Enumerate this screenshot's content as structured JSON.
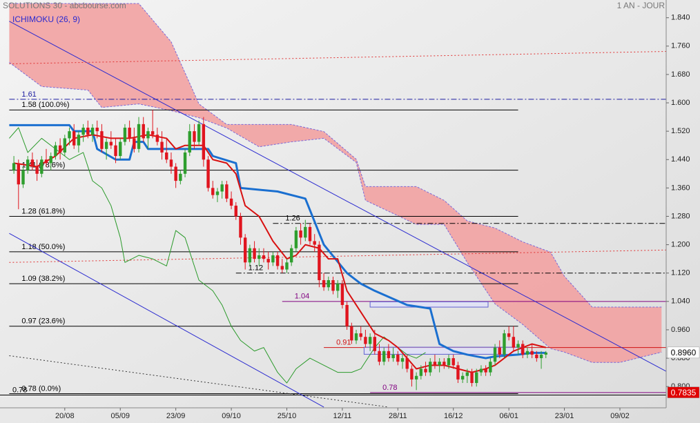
{
  "chart_data": {
    "type": "candlestick",
    "title": "SOLUTIONS 30 - abcbourse.com",
    "period": "1 AN - JOUR",
    "indicator": "ICHIMOKU (26, 9)",
    "xlim": [
      0,
      144
    ],
    "ylim": [
      0.74,
      1.89
    ],
    "grid": false,
    "xticks": [
      {
        "value": 14,
        "label": "20/08"
      },
      {
        "value": 26,
        "label": "05/09"
      },
      {
        "value": 38,
        "label": "23/09"
      },
      {
        "value": 50,
        "label": "09/10"
      },
      {
        "value": 62,
        "label": "25/10"
      },
      {
        "value": 74,
        "label": "12/11"
      },
      {
        "value": 86,
        "label": "28/11"
      },
      {
        "value": 98,
        "label": "16/12"
      },
      {
        "value": 110,
        "label": "06/01"
      },
      {
        "value": 122,
        "label": "23/01"
      },
      {
        "value": 134,
        "label": "09/02"
      }
    ],
    "yticks": [
      {
        "value": 1.84,
        "label": "1.840"
      },
      {
        "value": 1.76,
        "label": "1.760"
      },
      {
        "value": 1.68,
        "label": "1.680"
      },
      {
        "value": 1.6,
        "label": "1.600"
      },
      {
        "value": 1.52,
        "label": "1.520"
      },
      {
        "value": 1.44,
        "label": "1.440"
      },
      {
        "value": 1.36,
        "label": "1.360"
      },
      {
        "value": 1.28,
        "label": "1.280"
      },
      {
        "value": 1.2,
        "label": "1.200"
      },
      {
        "value": 1.12,
        "label": "1.120"
      },
      {
        "value": 1.04,
        "label": "1.040"
      },
      {
        "value": 0.96,
        "label": "0.960"
      },
      {
        "value": 0.88,
        "label": "0.880"
      },
      {
        "value": 0.8,
        "label": "0.800"
      }
    ],
    "up_color": "#2e9e2e",
    "down_color": "#e0141e",
    "x": [
      3,
      4,
      5,
      6,
      7,
      8,
      9,
      10,
      11,
      12,
      13,
      14,
      15,
      16,
      17,
      18,
      19,
      20,
      21,
      22,
      23,
      24,
      25,
      26,
      27,
      28,
      29,
      30,
      31,
      32,
      33,
      34,
      35,
      36,
      37,
      38,
      39,
      40,
      41,
      42,
      43,
      44,
      45,
      46,
      47,
      48,
      49,
      50,
      51,
      52,
      53,
      54,
      55,
      56,
      57,
      58,
      59,
      60,
      61,
      62,
      63,
      64,
      65,
      66,
      67,
      68,
      69,
      70,
      71,
      72,
      73,
      74,
      75,
      76,
      77,
      78,
      79,
      80,
      81,
      82,
      83,
      84,
      85,
      86,
      87,
      88,
      89,
      90,
      91,
      92,
      93,
      94,
      95,
      96,
      97,
      98,
      99,
      100,
      101,
      102,
      103,
      104,
      105,
      106,
      107,
      108,
      109,
      110,
      111,
      112,
      113,
      114,
      115,
      116,
      117,
      118
    ],
    "open": [
      1.41,
      1.43,
      1.37,
      1.41,
      1.44,
      1.42,
      1.4,
      1.44,
      1.43,
      1.45,
      1.48,
      1.46,
      1.5,
      1.52,
      1.48,
      1.51,
      1.53,
      1.51,
      1.53,
      1.52,
      1.47,
      1.49,
      1.48,
      1.45,
      1.49,
      1.53,
      1.5,
      1.47,
      1.54,
      1.5,
      1.52,
      1.51,
      1.49,
      1.46,
      1.44,
      1.42,
      1.38,
      1.4,
      1.46,
      1.52,
      1.49,
      1.54,
      1.44,
      1.36,
      1.34,
      1.35,
      1.37,
      1.33,
      1.31,
      1.28,
      1.22,
      1.15,
      1.19,
      1.16,
      1.17,
      1.16,
      1.15,
      1.17,
      1.14,
      1.13,
      1.15,
      1.19,
      1.24,
      1.22,
      1.25,
      1.21,
      1.2,
      1.1,
      1.08,
      1.1,
      1.07,
      1.09,
      1.03,
      0.97,
      0.93,
      0.95,
      0.94,
      0.92,
      0.94,
      0.9,
      0.87,
      0.9,
      0.88,
      0.89,
      0.87,
      0.88,
      0.85,
      0.82,
      0.83,
      0.85,
      0.84,
      0.87,
      0.86,
      0.87,
      0.86,
      0.88,
      0.86,
      0.82,
      0.83,
      0.84,
      0.81,
      0.84,
      0.85,
      0.84,
      0.87,
      0.91,
      0.89,
      0.95,
      0.94,
      0.91,
      0.92,
      0.89,
      0.9,
      0.89,
      0.88,
      0.89
    ],
    "high": [
      1.45,
      1.44,
      1.42,
      1.45,
      1.46,
      1.44,
      1.45,
      1.47,
      1.46,
      1.49,
      1.5,
      1.51,
      1.53,
      1.54,
      1.52,
      1.54,
      1.55,
      1.54,
      1.55,
      1.54,
      1.5,
      1.52,
      1.5,
      1.5,
      1.54,
      1.55,
      1.53,
      1.56,
      1.56,
      1.53,
      1.58,
      1.53,
      1.52,
      1.5,
      1.46,
      1.43,
      1.41,
      1.47,
      1.54,
      1.54,
      1.55,
      1.56,
      1.45,
      1.38,
      1.36,
      1.38,
      1.38,
      1.35,
      1.32,
      1.29,
      1.23,
      1.2,
      1.21,
      1.19,
      1.19,
      1.18,
      1.18,
      1.18,
      1.16,
      1.16,
      1.2,
      1.25,
      1.26,
      1.27,
      1.26,
      1.23,
      1.21,
      1.12,
      1.11,
      1.11,
      1.1,
      1.1,
      1.04,
      0.98,
      0.96,
      0.97,
      0.96,
      0.95,
      0.96,
      0.92,
      0.91,
      0.92,
      0.91,
      0.9,
      0.89,
      0.89,
      0.86,
      0.84,
      0.86,
      0.87,
      0.88,
      0.89,
      0.88,
      0.88,
      0.89,
      0.89,
      0.87,
      0.84,
      0.85,
      0.85,
      0.85,
      0.86,
      0.86,
      0.88,
      0.92,
      0.93,
      0.96,
      0.97,
      0.97,
      0.93,
      0.93,
      0.91,
      0.92,
      0.9,
      0.9,
      0.9
    ],
    "low": [
      1.4,
      1.3,
      1.36,
      1.4,
      1.41,
      1.38,
      1.39,
      1.42,
      1.41,
      1.44,
      1.44,
      1.45,
      1.48,
      1.47,
      1.46,
      1.49,
      1.5,
      1.49,
      1.5,
      1.46,
      1.44,
      1.47,
      1.43,
      1.44,
      1.48,
      1.49,
      1.46,
      1.46,
      1.49,
      1.47,
      1.5,
      1.48,
      1.44,
      1.43,
      1.4,
      1.36,
      1.37,
      1.39,
      1.45,
      1.47,
      1.48,
      1.42,
      1.35,
      1.33,
      1.32,
      1.33,
      1.32,
      1.3,
      1.27,
      1.2,
      1.13,
      1.14,
      1.15,
      1.14,
      1.15,
      1.13,
      1.14,
      1.13,
      1.12,
      1.12,
      1.14,
      1.18,
      1.2,
      1.21,
      1.2,
      1.18,
      1.08,
      1.07,
      1.07,
      1.06,
      1.05,
      1.02,
      0.96,
      0.92,
      0.92,
      0.93,
      0.91,
      0.9,
      0.89,
      0.86,
      0.86,
      0.87,
      0.87,
      0.86,
      0.85,
      0.84,
      0.8,
      0.79,
      0.82,
      0.83,
      0.83,
      0.85,
      0.84,
      0.85,
      0.85,
      0.85,
      0.81,
      0.81,
      0.81,
      0.8,
      0.8,
      0.83,
      0.83,
      0.83,
      0.86,
      0.88,
      0.88,
      0.93,
      0.9,
      0.89,
      0.88,
      0.88,
      0.88,
      0.87,
      0.85,
      0.88
    ],
    "close": [
      1.43,
      1.37,
      1.41,
      1.44,
      1.42,
      1.4,
      1.44,
      1.43,
      1.45,
      1.48,
      1.46,
      1.5,
      1.52,
      1.48,
      1.51,
      1.53,
      1.51,
      1.53,
      1.52,
      1.47,
      1.49,
      1.48,
      1.45,
      1.49,
      1.53,
      1.5,
      1.47,
      1.54,
      1.5,
      1.52,
      1.51,
      1.49,
      1.46,
      1.44,
      1.42,
      1.38,
      1.4,
      1.46,
      1.52,
      1.49,
      1.54,
      1.44,
      1.36,
      1.34,
      1.35,
      1.37,
      1.33,
      1.31,
      1.28,
      1.22,
      1.15,
      1.19,
      1.16,
      1.17,
      1.16,
      1.15,
      1.17,
      1.14,
      1.13,
      1.15,
      1.19,
      1.24,
      1.22,
      1.25,
      1.21,
      1.2,
      1.1,
      1.08,
      1.1,
      1.07,
      1.09,
      1.03,
      0.97,
      0.93,
      0.95,
      0.94,
      0.92,
      0.94,
      0.9,
      0.87,
      0.9,
      0.88,
      0.89,
      0.87,
      0.88,
      0.85,
      0.82,
      0.83,
      0.85,
      0.84,
      0.87,
      0.86,
      0.87,
      0.86,
      0.88,
      0.86,
      0.82,
      0.83,
      0.84,
      0.81,
      0.84,
      0.85,
      0.84,
      0.87,
      0.91,
      0.89,
      0.95,
      0.94,
      0.91,
      0.92,
      0.89,
      0.9,
      0.89,
      0.88,
      0.89,
      0.896
    ],
    "cloud": {
      "color": "#f2a2a2",
      "edge_color": "#7b68d8",
      "x": [
        2,
        9,
        19,
        22,
        30,
        37,
        43,
        49,
        56,
        63,
        70,
        77,
        79,
        90,
        96,
        101,
        107,
        113,
        119,
        122,
        128,
        134,
        143
      ],
      "span_a": [
        1.88,
        1.88,
        1.88,
        1.88,
        1.88,
        1.772,
        1.597,
        1.539,
        1.539,
        1.539,
        1.519,
        1.441,
        1.364,
        1.364,
        1.325,
        1.267,
        1.247,
        1.208,
        1.179,
        1.111,
        1.024,
        1.024,
        1.024
      ],
      "span_b": [
        1.714,
        1.646,
        1.636,
        1.587,
        1.597,
        1.578,
        1.558,
        1.529,
        1.476,
        1.49,
        1.5,
        1.432,
        1.325,
        1.257,
        1.257,
        1.15,
        1.033,
        0.975,
        0.907,
        0.897,
        0.868,
        0.868,
        0.897
      ]
    },
    "lines": [
      {
        "color": "#2a9a2a",
        "width": 1,
        "x": [
          2,
          4,
          6,
          9,
          12,
          15,
          18,
          20,
          22,
          24,
          26,
          27,
          30,
          33,
          36,
          38,
          40,
          43,
          46,
          48,
          50,
          52,
          55,
          57,
          60,
          62,
          64,
          67,
          70,
          73,
          76,
          78,
          81,
          83,
          86,
          88,
          90,
          92
        ],
        "values": [
          1.5,
          1.53,
          1.46,
          1.5,
          1.47,
          1.44,
          1.46,
          1.38,
          1.36,
          1.31,
          1.22,
          1.15,
          1.17,
          1.16,
          1.14,
          1.24,
          1.22,
          1.1,
          1.07,
          1.03,
          0.97,
          0.93,
          0.9,
          0.91,
          0.84,
          0.81,
          0.85,
          0.88,
          0.86,
          0.84,
          0.84,
          0.85,
          0.91,
          0.94,
          0.91,
          0.89,
          0.88,
          0.896
        ]
      },
      {
        "color": "#1a6fd0",
        "width": 3,
        "x": [
          2,
          15,
          16,
          20,
          21,
          25,
          28,
          29,
          31,
          32,
          45,
          46,
          51,
          52,
          60,
          66,
          70,
          75,
          78,
          81,
          88,
          93,
          95,
          98,
          101,
          105,
          107,
          112,
          115,
          118
        ],
        "values": [
          1.537,
          1.537,
          1.52,
          1.52,
          1.47,
          1.44,
          1.44,
          1.49,
          1.49,
          1.47,
          1.47,
          1.45,
          1.43,
          1.36,
          1.35,
          1.33,
          1.2,
          1.12,
          1.09,
          1.07,
          1.03,
          1.02,
          0.92,
          0.9,
          0.89,
          0.88,
          0.885,
          0.89,
          0.895,
          0.895
        ]
      },
      {
        "color": "#d81010",
        "width": 2,
        "x": [
          3,
          8,
          12,
          16,
          20,
          24,
          28,
          32,
          36,
          38,
          40,
          44,
          46,
          49,
          51,
          53,
          56,
          59,
          62,
          64,
          66,
          69,
          71,
          73,
          75,
          77,
          79,
          81,
          84,
          86,
          88,
          90,
          93,
          96,
          99,
          102,
          105,
          107,
          109,
          111,
          113,
          115,
          118
        ],
        "values": [
          1.43,
          1.42,
          1.45,
          1.5,
          1.51,
          1.5,
          1.5,
          1.51,
          1.5,
          1.47,
          1.48,
          1.48,
          1.44,
          1.43,
          1.4,
          1.31,
          1.28,
          1.21,
          1.16,
          1.17,
          1.2,
          1.19,
          1.16,
          1.16,
          1.07,
          1.03,
          0.99,
          0.95,
          0.93,
          0.91,
          0.88,
          0.85,
          0.86,
          0.86,
          0.85,
          0.84,
          0.85,
          0.86,
          0.88,
          0.9,
          0.91,
          0.92,
          0.91
        ]
      }
    ],
    "trendlines": [
      {
        "x": [
          2,
          144
        ],
        "values": [
          1.83,
          0.843
        ],
        "color": "#2a2ad0",
        "dash": "none"
      },
      {
        "x": [
          2,
          70
        ],
        "values": [
          1.232,
          0.742
        ],
        "color": "#2a2ad0",
        "dash": "none"
      },
      {
        "x": [
          2,
          84
        ],
        "values": [
          0.887,
          0.742
        ],
        "color": "#333333",
        "dash": "2,3"
      },
      {
        "x": [
          2,
          144
        ],
        "values": [
          1.71,
          1.745
        ],
        "color": "#e03030",
        "dash": "2,3"
      },
      {
        "x": [
          2,
          144
        ],
        "values": [
          1.15,
          1.185
        ],
        "color": "#e03030",
        "dash": "2,3"
      }
    ],
    "levels": [
      {
        "label": "1.61",
        "value": 1.61,
        "x": [
          2,
          144
        ],
        "color": "#1a1aa0",
        "dash": "8,3,2,3"
      },
      {
        "label": "1.58 (100.0%)",
        "value": 1.58,
        "x": [
          2,
          112
        ],
        "color": "#000000",
        "dash": "none"
      },
      {
        "label": "1.41 (78.6%)",
        "value": 1.41,
        "x": [
          2,
          112
        ],
        "color": "#000000",
        "dash": "none"
      },
      {
        "label": "1.28 (61.8%)",
        "value": 1.28,
        "x": [
          2,
          112
        ],
        "color": "#000000",
        "dash": "none"
      },
      {
        "label": "1.26",
        "value": 1.26,
        "x": [
          59,
          144
        ],
        "color": "#000000",
        "dash": "8,3,2,3"
      },
      {
        "label": "1.18 (50.0%)",
        "value": 1.18,
        "x": [
          2,
          112
        ],
        "color": "#000000",
        "dash": "none"
      },
      {
        "label": "1.12",
        "value": 1.12,
        "x": [
          51,
          144
        ],
        "color": "#000000",
        "dash": "8,3,2,3"
      },
      {
        "label": "1.09 (38.2%)",
        "value": 1.09,
        "x": [
          2,
          112
        ],
        "color": "#000000",
        "dash": "none"
      },
      {
        "label": "1.04",
        "value": 1.04,
        "x": [
          61,
          144
        ],
        "color": "#800080",
        "dash": "none"
      },
      {
        "label": "0.97 (23.6%)",
        "value": 0.97,
        "x": [
          2,
          112
        ],
        "color": "#000000",
        "dash": "none"
      },
      {
        "label": "0.91",
        "value": 0.91,
        "x": [
          70,
          144
        ],
        "color": "#d01010",
        "dash": "none"
      },
      {
        "label": "0.78",
        "value": 0.783,
        "x": [
          80,
          144
        ],
        "color": "#800080",
        "dash": "none"
      },
      {
        "label": "0.78 (0.0%)",
        "value": 0.78,
        "x": [
          2,
          112
        ],
        "color": "#000000",
        "dash": "none"
      },
      {
        "label": "0.78",
        "value": 0.776,
        "x": [
          0,
          144
        ],
        "color": "#000000",
        "dash": "none"
      }
    ],
    "rects": [
      {
        "x": [
          80,
          105.5
        ],
        "y": [
          1.024,
          1.039
        ],
        "color": "#6060d0"
      },
      {
        "x": [
          78.7,
          112.7
        ],
        "y": [
          0.891,
          0.911
        ],
        "color": "#6060d0"
      }
    ],
    "price_tags": [
      {
        "value": 0.896,
        "label": "0.8960",
        "color": "#ffffff",
        "text_color": "#000000"
      },
      {
        "value": 0.7835,
        "label": "0.7835",
        "color": "#e00000",
        "text_color": "#ffffff"
      }
    ]
  }
}
